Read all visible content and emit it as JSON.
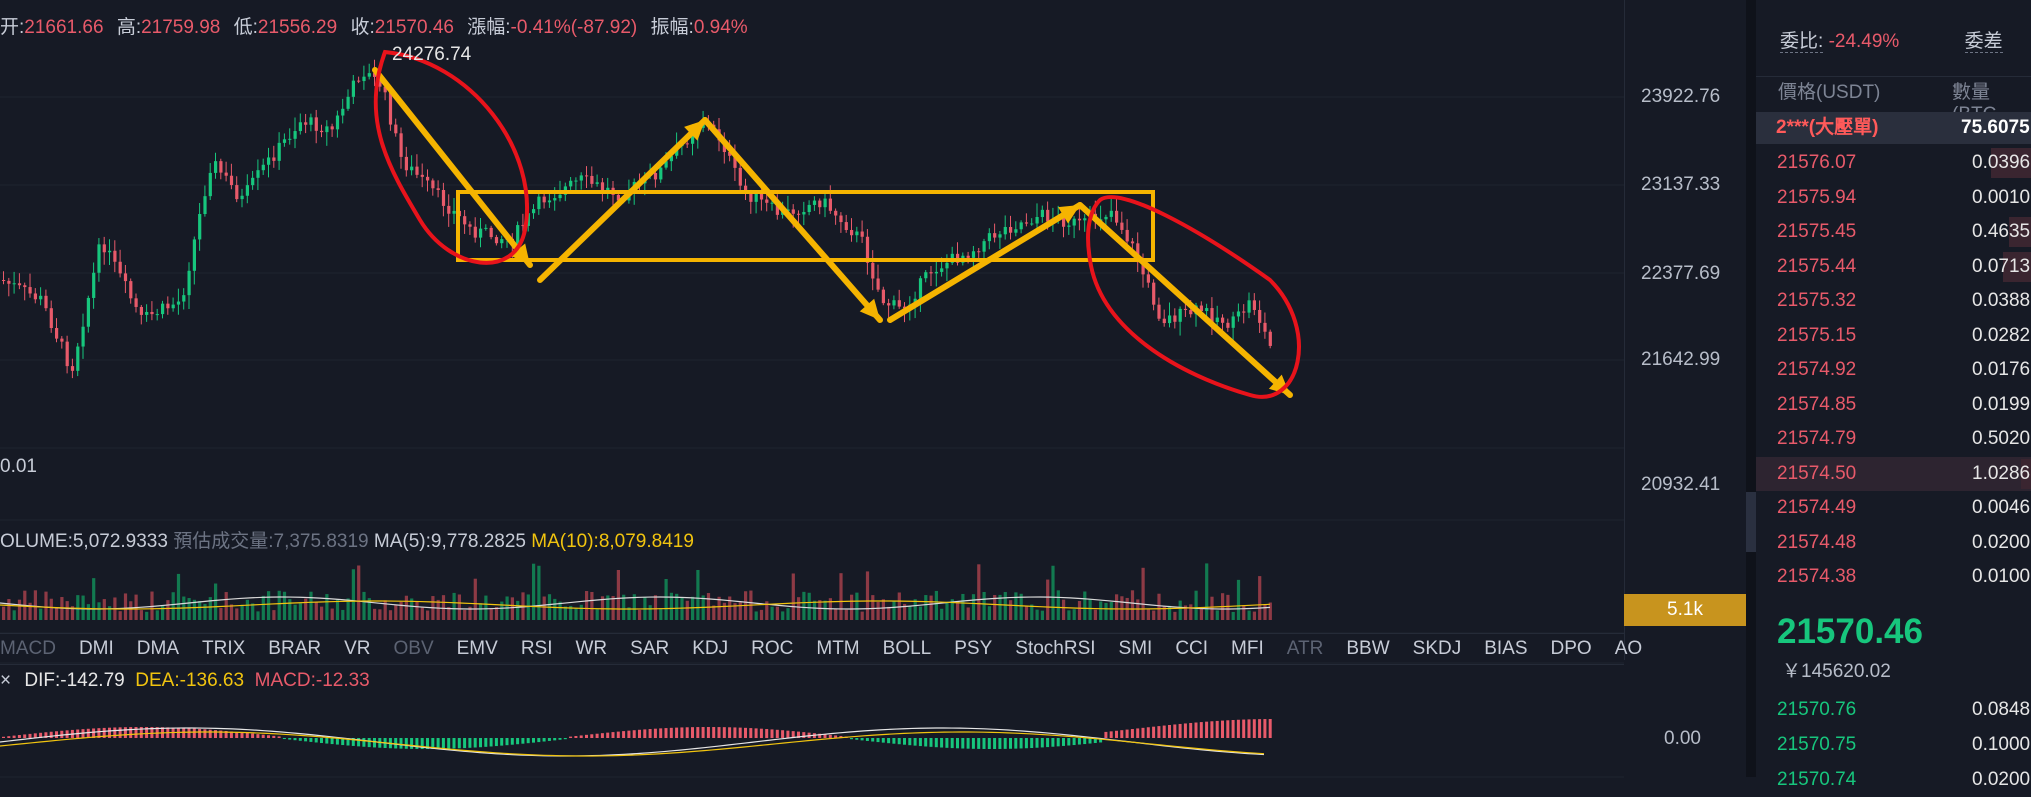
{
  "ohlc": {
    "open_label": "开:",
    "open": "21661.66",
    "high_label": "高:",
    "high": "21759.98",
    "low_label": "低:",
    "low": "21556.29",
    "close_label": "收:",
    "close": "21570.46",
    "change_label": "漲幅:",
    "change": "-0.41%(-87.92)",
    "amp_label": "振幅:",
    "amp": "0.94%"
  },
  "peak_label": "24276.74",
  "price_axis": [
    "23922.76",
    "23137.33",
    "22377.69",
    "21642.99",
    "20932.41"
  ],
  "left_value": "0.01",
  "volume": {
    "vol_label": "OLUME:5,072.9333",
    "est_label": "預估成交量:7,375.8319",
    "ma5": "MA(5):9,778.2825",
    "ma10": "MA(10):8,079.8419",
    "badge": "5.1k"
  },
  "indicators": [
    "MACD",
    "DMI",
    "DMA",
    "TRIX",
    "BRAR",
    "VR",
    "OBV",
    "EMV",
    "RSI",
    "WR",
    "SAR",
    "KDJ",
    "ROC",
    "MTM",
    "BOLL",
    "PSY",
    "StochRSI",
    "SMI",
    "CCI",
    "MFI",
    "ATR",
    "BBW",
    "SKDJ",
    "BIAS",
    "DPO",
    "AO"
  ],
  "dim_indicators": [
    "MACD",
    "OBV",
    "ATR"
  ],
  "macd": {
    "close_icon": "×",
    "dif": "DIF:-142.79",
    "dea": "DEA:-136.63",
    "macd": "MACD:-12.33",
    "zero": "0.00"
  },
  "orderbook": {
    "ratio_label": "委比:",
    "ratio": "-24.49%",
    "diff_label": "委差",
    "col_price": "價格(USDT)",
    "col_qty": "數量(BTC",
    "big_label": "2***(大壓單)",
    "big_qty": "75.6075",
    "asks": [
      {
        "p": "21576.07",
        "q": "0.0396"
      },
      {
        "p": "21575.94",
        "q": "0.0010"
      },
      {
        "p": "21575.45",
        "q": "0.4635"
      },
      {
        "p": "21575.44",
        "q": "0.0713"
      },
      {
        "p": "21575.32",
        "q": "0.0388"
      },
      {
        "p": "21575.15",
        "q": "0.0282"
      },
      {
        "p": "21574.92",
        "q": "0.0176"
      },
      {
        "p": "21574.85",
        "q": "0.0199"
      },
      {
        "p": "21574.79",
        "q": "0.5020"
      },
      {
        "p": "21574.50",
        "q": "1.0286"
      },
      {
        "p": "21574.49",
        "q": "0.0046"
      },
      {
        "p": "21574.48",
        "q": "0.0200"
      },
      {
        "p": "21574.38",
        "q": "0.0100"
      }
    ],
    "last_price": "21570.46",
    "cny": "￥145620.02",
    "bids": [
      {
        "p": "21570.76",
        "q": "0.0848"
      },
      {
        "p": "21570.75",
        "q": "0.1000"
      },
      {
        "p": "21570.74",
        "q": "0.0200"
      }
    ]
  },
  "colors": {
    "up": "#17c67d",
    "down": "#e85a6a",
    "annotation_yellow": "#f5b400",
    "annotation_red": "#e8131b"
  }
}
